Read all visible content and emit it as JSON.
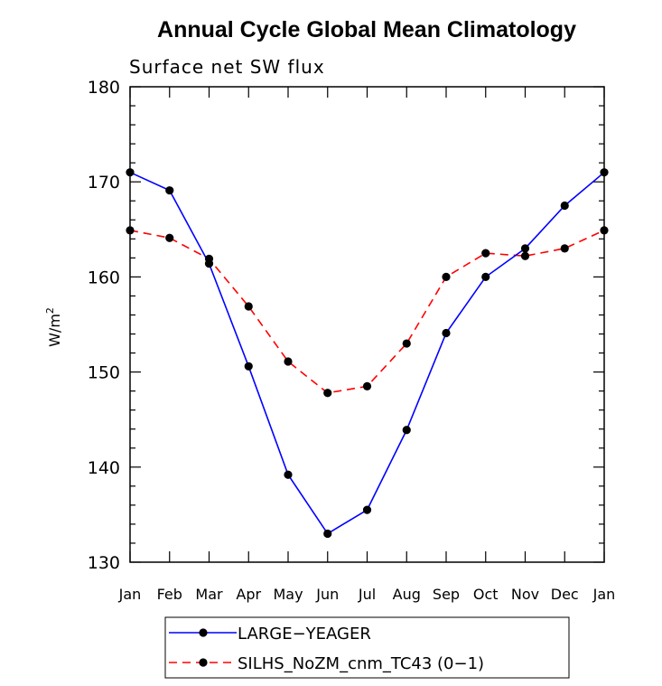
{
  "chart_data": {
    "type": "line",
    "title": "Annual Cycle Global Mean Climatology",
    "subtitle": "Surface net SW flux",
    "xlabel": "",
    "ylabel": "W/m",
    "ylabel_superscript": "2",
    "categories": [
      "Jan",
      "Feb",
      "Mar",
      "Apr",
      "May",
      "Jun",
      "Jul",
      "Aug",
      "Sep",
      "Oct",
      "Nov",
      "Dec",
      "Jan"
    ],
    "ylim": [
      130,
      180
    ],
    "yticks": [
      130,
      140,
      150,
      160,
      170,
      180
    ],
    "grid": false,
    "legend_position": "bottom",
    "series": [
      {
        "name": "LARGE−YEAGER",
        "color": "#0000ff",
        "dash": "solid",
        "marker": "filled-circle",
        "values": [
          171.0,
          169.1,
          161.4,
          150.6,
          139.2,
          133.0,
          135.5,
          143.9,
          154.1,
          160.0,
          163.0,
          167.5,
          171.0
        ]
      },
      {
        "name": "SILHS_NoZM_cnm_TC43 (0−1)",
        "color": "#ff0000",
        "dash": "dashed",
        "marker": "filled-circle",
        "values": [
          164.9,
          164.1,
          161.9,
          156.9,
          151.1,
          147.8,
          148.5,
          153.0,
          160.0,
          162.5,
          162.2,
          163.0,
          164.9
        ]
      }
    ]
  }
}
